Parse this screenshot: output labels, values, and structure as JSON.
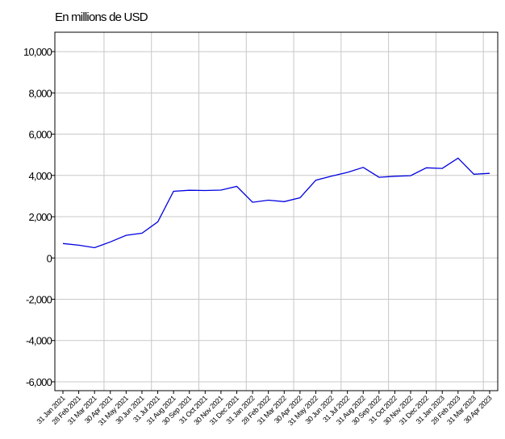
{
  "chart_data": {
    "type": "line",
    "title": "En millions de USD",
    "categories": [
      "31 Jan 2021",
      "28 Feb 2021",
      "31 Mar 2021",
      "30 Apr 2021",
      "31 May 2021",
      "30 Jun 2021",
      "31 Jul 2021",
      "31 Aug 2021",
      "30 Sep 2021",
      "31 Oct 2021",
      "30 Nov 2021",
      "31 Dec 2021",
      "31 Jan 2022",
      "28 Feb 2022",
      "31 Mar 2022",
      "30 Apr 2022",
      "31 May 2022",
      "30 Jun 2022",
      "31 Jul 2022",
      "31 Aug 2022",
      "30 Sep 2022",
      "31 Oct 2022",
      "30 Nov 2022",
      "31 Dec 2022",
      "31 Jan 2023",
      "28 Feb 2023",
      "31 Mar 2023",
      "30 Apr 2023"
    ],
    "values": [
      700,
      620,
      500,
      780,
      1100,
      1200,
      1750,
      3230,
      3280,
      3270,
      3290,
      3470,
      2700,
      2800,
      2730,
      2920,
      3770,
      3970,
      4150,
      4390,
      3910,
      3960,
      3990,
      4370,
      4340,
      4840,
      4060,
      4100
    ],
    "color": "#0000e0",
    "ylim": [
      -6430,
      10940
    ],
    "yticks": [
      {
        "value": -6000,
        "label": "-6,000"
      },
      {
        "value": -4000,
        "label": "-4,000"
      },
      {
        "value": -2000,
        "label": "-2,000"
      },
      0,
      {
        "value": 2000,
        "label": "2,000"
      },
      {
        "value": 4000,
        "label": "4,000"
      },
      {
        "value": 6000,
        "label": "6,000"
      },
      {
        "value": 8000,
        "label": "8,000"
      },
      {
        "value": 10000,
        "label": "10,000"
      }
    ],
    "grid": true
  }
}
